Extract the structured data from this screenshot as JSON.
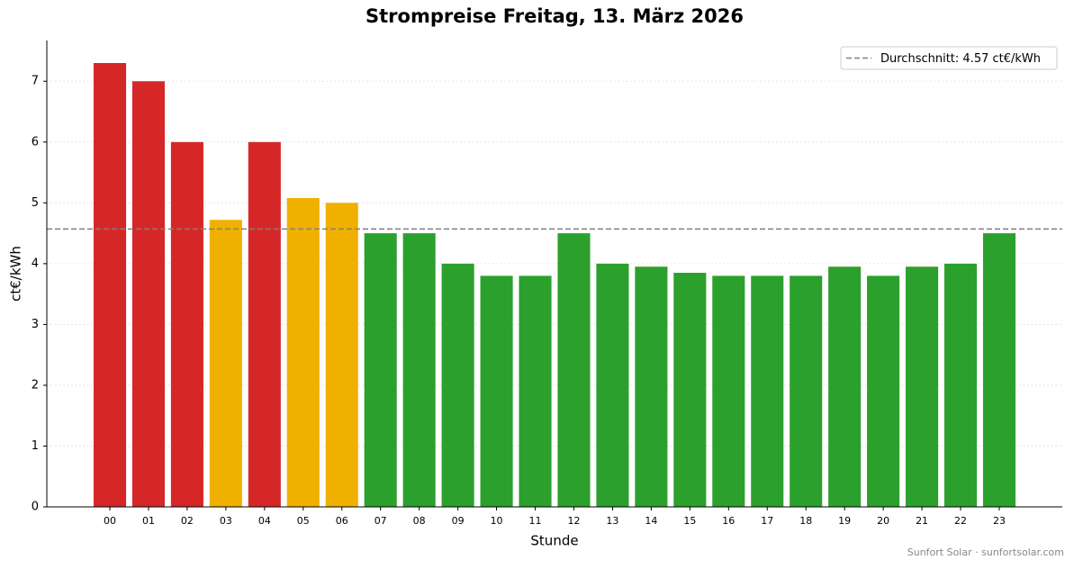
{
  "chart_data": {
    "type": "bar",
    "title": "Strompreise Freitag, 13. März 2026",
    "x_label": "Stunde",
    "y_label": "ct€/kWh",
    "categories": [
      "00",
      "01",
      "02",
      "03",
      "04",
      "05",
      "06",
      "07",
      "08",
      "09",
      "10",
      "11",
      "12",
      "13",
      "14",
      "15",
      "16",
      "17",
      "18",
      "19",
      "20",
      "21",
      "22",
      "23"
    ],
    "values": [
      7.3,
      7.0,
      6.0,
      4.72,
      6.0,
      5.08,
      5.0,
      4.5,
      4.5,
      4.0,
      3.8,
      3.8,
      4.5,
      4.0,
      3.95,
      3.85,
      3.8,
      3.8,
      3.8,
      3.95,
      3.8,
      3.95,
      4.0,
      4.5
    ],
    "colors": [
      "#d62728",
      "#d62728",
      "#d62728",
      "#f0b000",
      "#d62728",
      "#f0b000",
      "#f0b000",
      "#2ca02c",
      "#2ca02c",
      "#2ca02c",
      "#2ca02c",
      "#2ca02c",
      "#2ca02c",
      "#2ca02c",
      "#2ca02c",
      "#2ca02c",
      "#2ca02c",
      "#2ca02c",
      "#2ca02c",
      "#2ca02c",
      "#2ca02c",
      "#2ca02c",
      "#2ca02c",
      "#2ca02c"
    ],
    "average": {
      "value": 4.57,
      "label": "Durchschnitt: 4.57 ct€/kWh",
      "color": "#808080"
    },
    "legend": "upper right",
    "ylim": [
      0,
      7.67
    ],
    "yticks": [
      0,
      1,
      2,
      3,
      4,
      5,
      6,
      7
    ],
    "grid": true,
    "footer": "Sunfort Solar · sunfortsolar.com"
  }
}
